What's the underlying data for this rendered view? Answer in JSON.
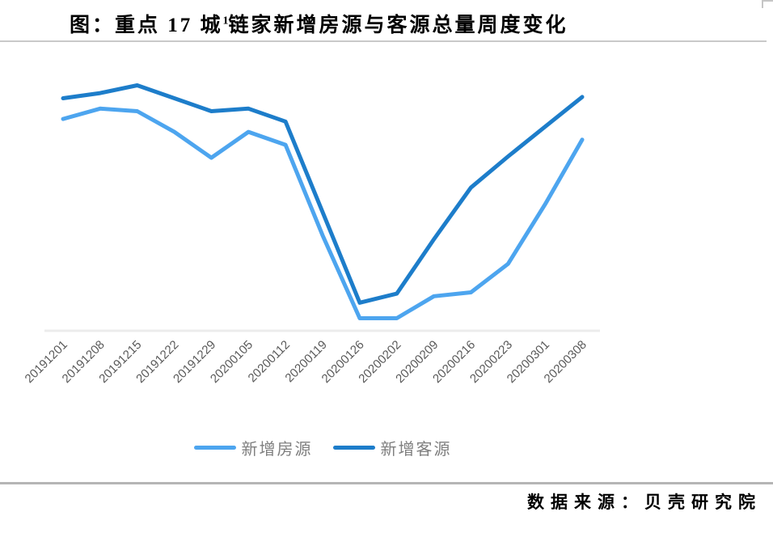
{
  "title": {
    "prefix": "图：重点 17 城",
    "footnote": "1",
    "suffix": "链家新增房源与客源总量周度变化"
  },
  "source_label": "数据来源：贝壳研究院",
  "legend": {
    "items": [
      {
        "key": "new-listings",
        "label": "新增房源",
        "color": "#4da5ef"
      },
      {
        "key": "new-customers",
        "label": "新增客源",
        "color": "#1d7dca"
      }
    ]
  },
  "chart_data": {
    "type": "line",
    "title": "重点17城链家新增房源与客源总量周度变化",
    "x": [
      "20191201",
      "20191208",
      "20191215",
      "20191222",
      "20191229",
      "20200105",
      "20200112",
      "20200119",
      "20200126",
      "20200202",
      "20200209",
      "20200216",
      "20200223",
      "20200301",
      "20200308"
    ],
    "series": [
      {
        "key": "new-listings",
        "name": "新增房源",
        "color": "#4da5ef",
        "values": [
          82,
          86,
          85,
          77,
          67,
          77,
          72,
          37,
          5,
          5,
          13.5,
          15,
          26,
          49,
          74
        ]
      },
      {
        "key": "new-customers",
        "name": "新增客源",
        "color": "#1d7dca",
        "values": [
          90,
          92,
          95,
          90,
          85,
          86,
          81,
          46,
          11,
          14.5,
          35.5,
          55.5,
          67.5,
          79,
          90.5
        ]
      }
    ],
    "xlabel": "",
    "ylabel": "",
    "ylim": [
      0,
      100
    ],
    "y_axis_visible": false,
    "grid": false,
    "legend_position": "bottom",
    "x_tick_rotation": -45,
    "value_note": "Relative index (0-100) estimated from line positions; the chart displays no y-axis scale."
  }
}
